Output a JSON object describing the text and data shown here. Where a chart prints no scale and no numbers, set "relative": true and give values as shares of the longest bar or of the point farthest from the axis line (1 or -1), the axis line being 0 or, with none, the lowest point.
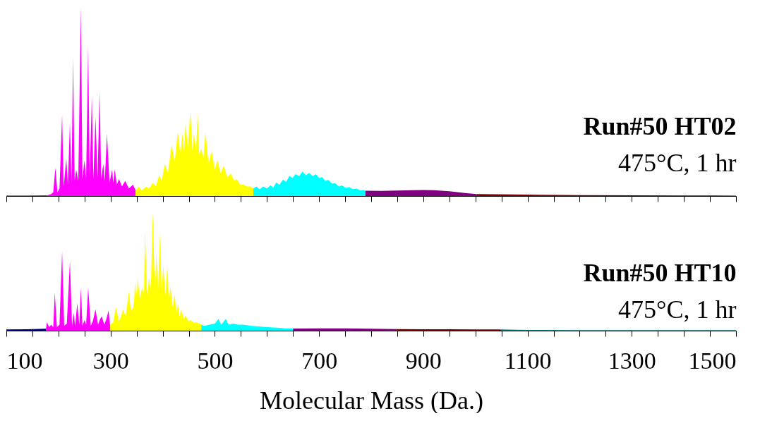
{
  "chart_data": [
    {
      "type": "area",
      "title": "Run#50 HT02",
      "subtitle": "475°C, 1 hr",
      "relative": true,
      "xlim": [
        100,
        1500
      ],
      "tick_labels": false,
      "xticks": [
        100,
        {
          "value": 150,
          "label": null
        },
        {
          "value": 200,
          "label": null
        },
        {
          "value": 250,
          "label": null
        },
        300,
        {
          "value": 350,
          "label": null
        },
        {
          "value": 400,
          "label": null
        },
        {
          "value": 450,
          "label": null
        },
        500,
        {
          "value": 550,
          "label": null
        },
        {
          "value": 600,
          "label": null
        },
        {
          "value": 650,
          "label": null
        },
        700,
        {
          "value": 750,
          "label": null
        },
        {
          "value": 800,
          "label": null
        },
        {
          "value": 850,
          "label": null
        },
        900,
        {
          "value": 950,
          "label": null
        },
        {
          "value": 1000,
          "label": null
        },
        {
          "value": 1050,
          "label": null
        },
        1100,
        {
          "value": 1150,
          "label": null
        },
        {
          "value": 1200,
          "label": null
        },
        {
          "value": 1250,
          "label": null
        },
        1300,
        {
          "value": 1350,
          "label": null
        },
        {
          "value": 1400,
          "label": null
        },
        {
          "value": 1450,
          "label": null
        },
        1500
      ],
      "series": [
        {
          "color": "#000080",
          "x": [
            100,
            140,
            178
          ],
          "values": [
            0.002,
            0.002,
            0.003
          ]
        },
        {
          "color": "#ff00ff",
          "x": [
            178,
            186,
            190,
            194,
            198,
            202,
            207,
            210,
            215,
            218,
            222,
            225,
            228,
            231,
            234,
            238,
            243,
            246,
            250,
            253,
            257,
            260,
            264,
            267,
            271,
            275,
            279,
            282,
            286,
            289,
            293,
            298,
            303,
            305,
            308,
            312,
            316,
            322,
            328,
            335,
            343,
            348
          ],
          "values": [
            0.003,
            0.01,
            0.02,
            0.15,
            0.02,
            0.04,
            0.43,
            0.05,
            0.2,
            0.06,
            0.39,
            0.07,
            0.73,
            0.08,
            0.14,
            0.08,
            1.0,
            0.09,
            0.19,
            0.09,
            0.79,
            0.1,
            0.53,
            0.09,
            0.42,
            0.1,
            0.55,
            0.09,
            0.17,
            0.08,
            0.33,
            0.07,
            0.14,
            0.07,
            0.14,
            0.06,
            0.09,
            0.05,
            0.08,
            0.04,
            0.06,
            0.03
          ]
        },
        {
          "color": "#ffff00",
          "x": [
            348,
            354,
            360,
            368,
            374,
            381,
            387,
            393,
            398,
            404,
            410,
            417,
            423,
            429,
            434,
            438,
            441,
            444,
            448,
            453,
            457,
            460,
            464,
            467,
            470,
            474,
            478,
            482,
            488,
            494,
            500,
            505,
            511,
            517,
            524,
            531,
            537,
            542,
            549,
            555,
            562,
            568,
            574
          ],
          "values": [
            0.03,
            0.05,
            0.03,
            0.05,
            0.04,
            0.07,
            0.05,
            0.11,
            0.08,
            0.17,
            0.12,
            0.27,
            0.18,
            0.34,
            0.22,
            0.33,
            0.24,
            0.39,
            0.25,
            0.45,
            0.24,
            0.33,
            0.24,
            0.44,
            0.22,
            0.25,
            0.2,
            0.34,
            0.17,
            0.24,
            0.14,
            0.19,
            0.12,
            0.16,
            0.1,
            0.12,
            0.08,
            0.09,
            0.06,
            0.06,
            0.05,
            0.05,
            0.04
          ]
        },
        {
          "color": "#00ffff",
          "x": [
            574,
            580,
            586,
            593,
            600,
            607,
            612,
            618,
            624,
            631,
            637,
            643,
            649,
            655,
            662,
            668,
            675,
            681,
            688,
            694,
            700,
            706,
            712,
            718,
            725,
            731,
            738,
            744,
            751,
            758,
            765,
            772,
            779,
            785,
            789
          ],
          "values": [
            0.04,
            0.05,
            0.035,
            0.05,
            0.04,
            0.057,
            0.045,
            0.072,
            0.06,
            0.087,
            0.075,
            0.106,
            0.095,
            0.116,
            0.105,
            0.13,
            0.11,
            0.122,
            0.105,
            0.116,
            0.095,
            0.1,
            0.08,
            0.085,
            0.065,
            0.068,
            0.05,
            0.056,
            0.043,
            0.047,
            0.036,
            0.039,
            0.03,
            0.032,
            0.028
          ]
        },
        {
          "color": "#800080",
          "x": [
            789,
            820,
            850,
            880,
            900,
            920,
            950,
            980,
            1002
          ],
          "values": [
            0.028,
            0.027,
            0.029,
            0.031,
            0.032,
            0.031,
            0.025,
            0.016,
            0.01
          ]
        },
        {
          "color": "#800000",
          "x": [
            1002,
            1100,
            1200,
            1300,
            1400,
            1500
          ],
          "values": [
            0.01,
            0.007,
            0.005,
            0.004,
            0.003,
            0.002
          ]
        }
      ]
    },
    {
      "type": "area",
      "title": "Run#50 HT10",
      "subtitle": "475°C, 1 hr",
      "relative": true,
      "xlabel": "Molecular Mass (Da.)",
      "xlim": [
        100,
        1500
      ],
      "xticks": [
        100,
        {
          "value": 150,
          "label": null
        },
        {
          "value": 200,
          "label": null
        },
        {
          "value": 250,
          "label": null
        },
        300,
        {
          "value": 350,
          "label": null
        },
        {
          "value": 400,
          "label": null
        },
        {
          "value": 450,
          "label": null
        },
        500,
        {
          "value": 550,
          "label": null
        },
        {
          "value": 600,
          "label": null
        },
        {
          "value": 650,
          "label": null
        },
        700,
        {
          "value": 750,
          "label": null
        },
        {
          "value": 800,
          "label": null
        },
        {
          "value": 850,
          "label": null
        },
        900,
        {
          "value": 950,
          "label": null
        },
        {
          "value": 1000,
          "label": null
        },
        {
          "value": 1050,
          "label": null
        },
        1100,
        {
          "value": 1150,
          "label": null
        },
        {
          "value": 1200,
          "label": null
        },
        {
          "value": 1250,
          "label": null
        },
        1300,
        {
          "value": 1350,
          "label": null
        },
        {
          "value": 1400,
          "label": null
        },
        {
          "value": 1450,
          "label": null
        },
        1500
      ],
      "series": [
        {
          "color": "#000080",
          "x": [
            100,
            140,
            176
          ],
          "values": [
            0.01,
            0.012,
            0.016
          ]
        },
        {
          "color": "#ff00ff",
          "x": [
            176,
            178,
            182,
            186,
            190,
            193,
            197,
            202,
            207,
            211,
            216,
            222,
            226,
            229,
            232,
            236,
            240,
            243,
            246,
            250,
            253,
            257,
            262,
            266,
            271,
            276,
            280,
            283,
            288,
            292,
            296,
            299
          ],
          "values": [
            0.016,
            0.07,
            0.03,
            0.05,
            0.03,
            0.32,
            0.03,
            0.05,
            0.67,
            0.04,
            0.06,
            0.59,
            0.04,
            0.15,
            0.04,
            0.23,
            0.05,
            0.36,
            0.04,
            0.09,
            0.05,
            0.36,
            0.04,
            0.08,
            0.18,
            0.05,
            0.1,
            0.12,
            0.05,
            0.1,
            0.17,
            0.05
          ]
        },
        {
          "color": "#ffff00",
          "x": [
            299,
            305,
            310,
            316,
            320,
            324,
            329,
            335,
            339,
            343,
            345,
            347,
            350,
            352,
            356,
            361,
            364,
            366,
            370,
            374,
            377,
            381,
            385,
            388,
            391,
            395,
            398,
            401,
            405,
            409,
            412,
            415,
            419,
            423,
            426,
            429,
            432,
            436,
            440,
            444,
            449,
            453,
            459,
            465,
            471,
            474
          ],
          "values": [
            0.05,
            0.07,
            0.2,
            0.08,
            0.12,
            0.18,
            0.12,
            0.33,
            0.17,
            0.19,
            0.24,
            0.41,
            0.26,
            0.45,
            0.27,
            0.37,
            0.28,
            0.85,
            0.3,
            0.45,
            0.32,
            1.0,
            0.34,
            0.65,
            0.33,
            0.83,
            0.32,
            0.55,
            0.3,
            0.55,
            0.24,
            0.38,
            0.2,
            0.31,
            0.15,
            0.23,
            0.12,
            0.18,
            0.1,
            0.13,
            0.08,
            0.09,
            0.07,
            0.07,
            0.06,
            0.05
          ]
        },
        {
          "color": "#00ffff",
          "x": [
            474,
            480,
            490,
            500,
            507,
            512,
            516,
            521,
            526,
            535,
            545,
            555,
            570,
            585,
            600,
            620,
            635,
            650
          ],
          "values": [
            0.05,
            0.04,
            0.05,
            0.06,
            0.1,
            0.05,
            0.07,
            0.1,
            0.05,
            0.06,
            0.05,
            0.05,
            0.04,
            0.035,
            0.03,
            0.025,
            0.02,
            0.018
          ]
        },
        {
          "color": "#800080",
          "x": [
            650,
            700,
            750,
            800,
            849
          ],
          "values": [
            0.018,
            0.02,
            0.019,
            0.016,
            0.014
          ]
        },
        {
          "color": "#800000",
          "x": [
            849,
            900,
            950,
            1000,
            1049
          ],
          "values": [
            0.014,
            0.012,
            0.012,
            0.011,
            0.01
          ]
        },
        {
          "color": "#008080",
          "x": [
            1049,
            1080,
            1100,
            1200,
            1350,
            1500
          ],
          "values": [
            0.01,
            0.008,
            0.006,
            0.004,
            0.004,
            0.004
          ]
        }
      ]
    }
  ]
}
